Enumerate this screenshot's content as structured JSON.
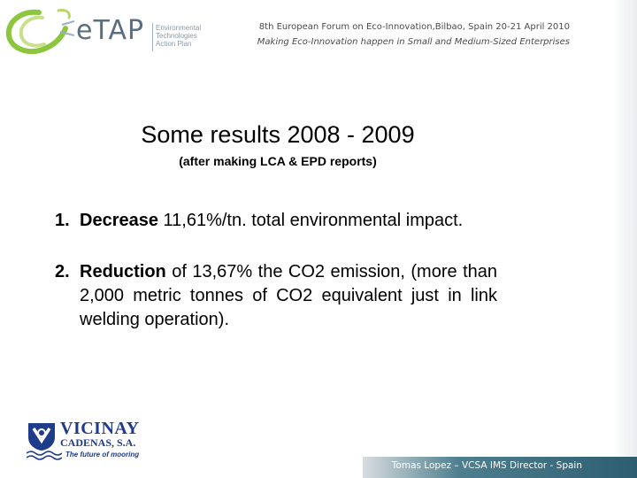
{
  "logo": {
    "wordmark": "eTAP",
    "subtext": [
      "Environmental",
      "Technologies",
      "Action Plan"
    ]
  },
  "event": {
    "title": "8th European Forum on Eco-Innovation,Bilbao, Spain 20-21 April 2010",
    "subtitle": "Making Eco-Innovation happen in Small and Medium-Sized Enterprises"
  },
  "slide": {
    "title": "Some results 2008 - 2009",
    "subtitle": "(after making LCA & EPD reports)",
    "items": [
      {
        "number": "1.",
        "bold": "Decrease",
        "text": " 11,61%/tn. total environmental impact."
      },
      {
        "number": "2.",
        "bold": "Reduction",
        "text": " of 13,67% the CO2 emission, (more than 2,000 metric tonnes of CO2 equivalent just in link welding operation)."
      }
    ]
  },
  "company": {
    "name": "VICINAY",
    "sub": "CADENAS, S.A.",
    "tagline": "The future of mooring"
  },
  "footer": {
    "presenter": "Tomas Lopez – VCSA IMS Director - Spain"
  },
  "colors": {
    "logo_green": "#8cc63f",
    "logo_gray": "#5a6e7f",
    "vicinay_blue": "#1f3c8a",
    "footer_teal": "#2d5e70"
  }
}
